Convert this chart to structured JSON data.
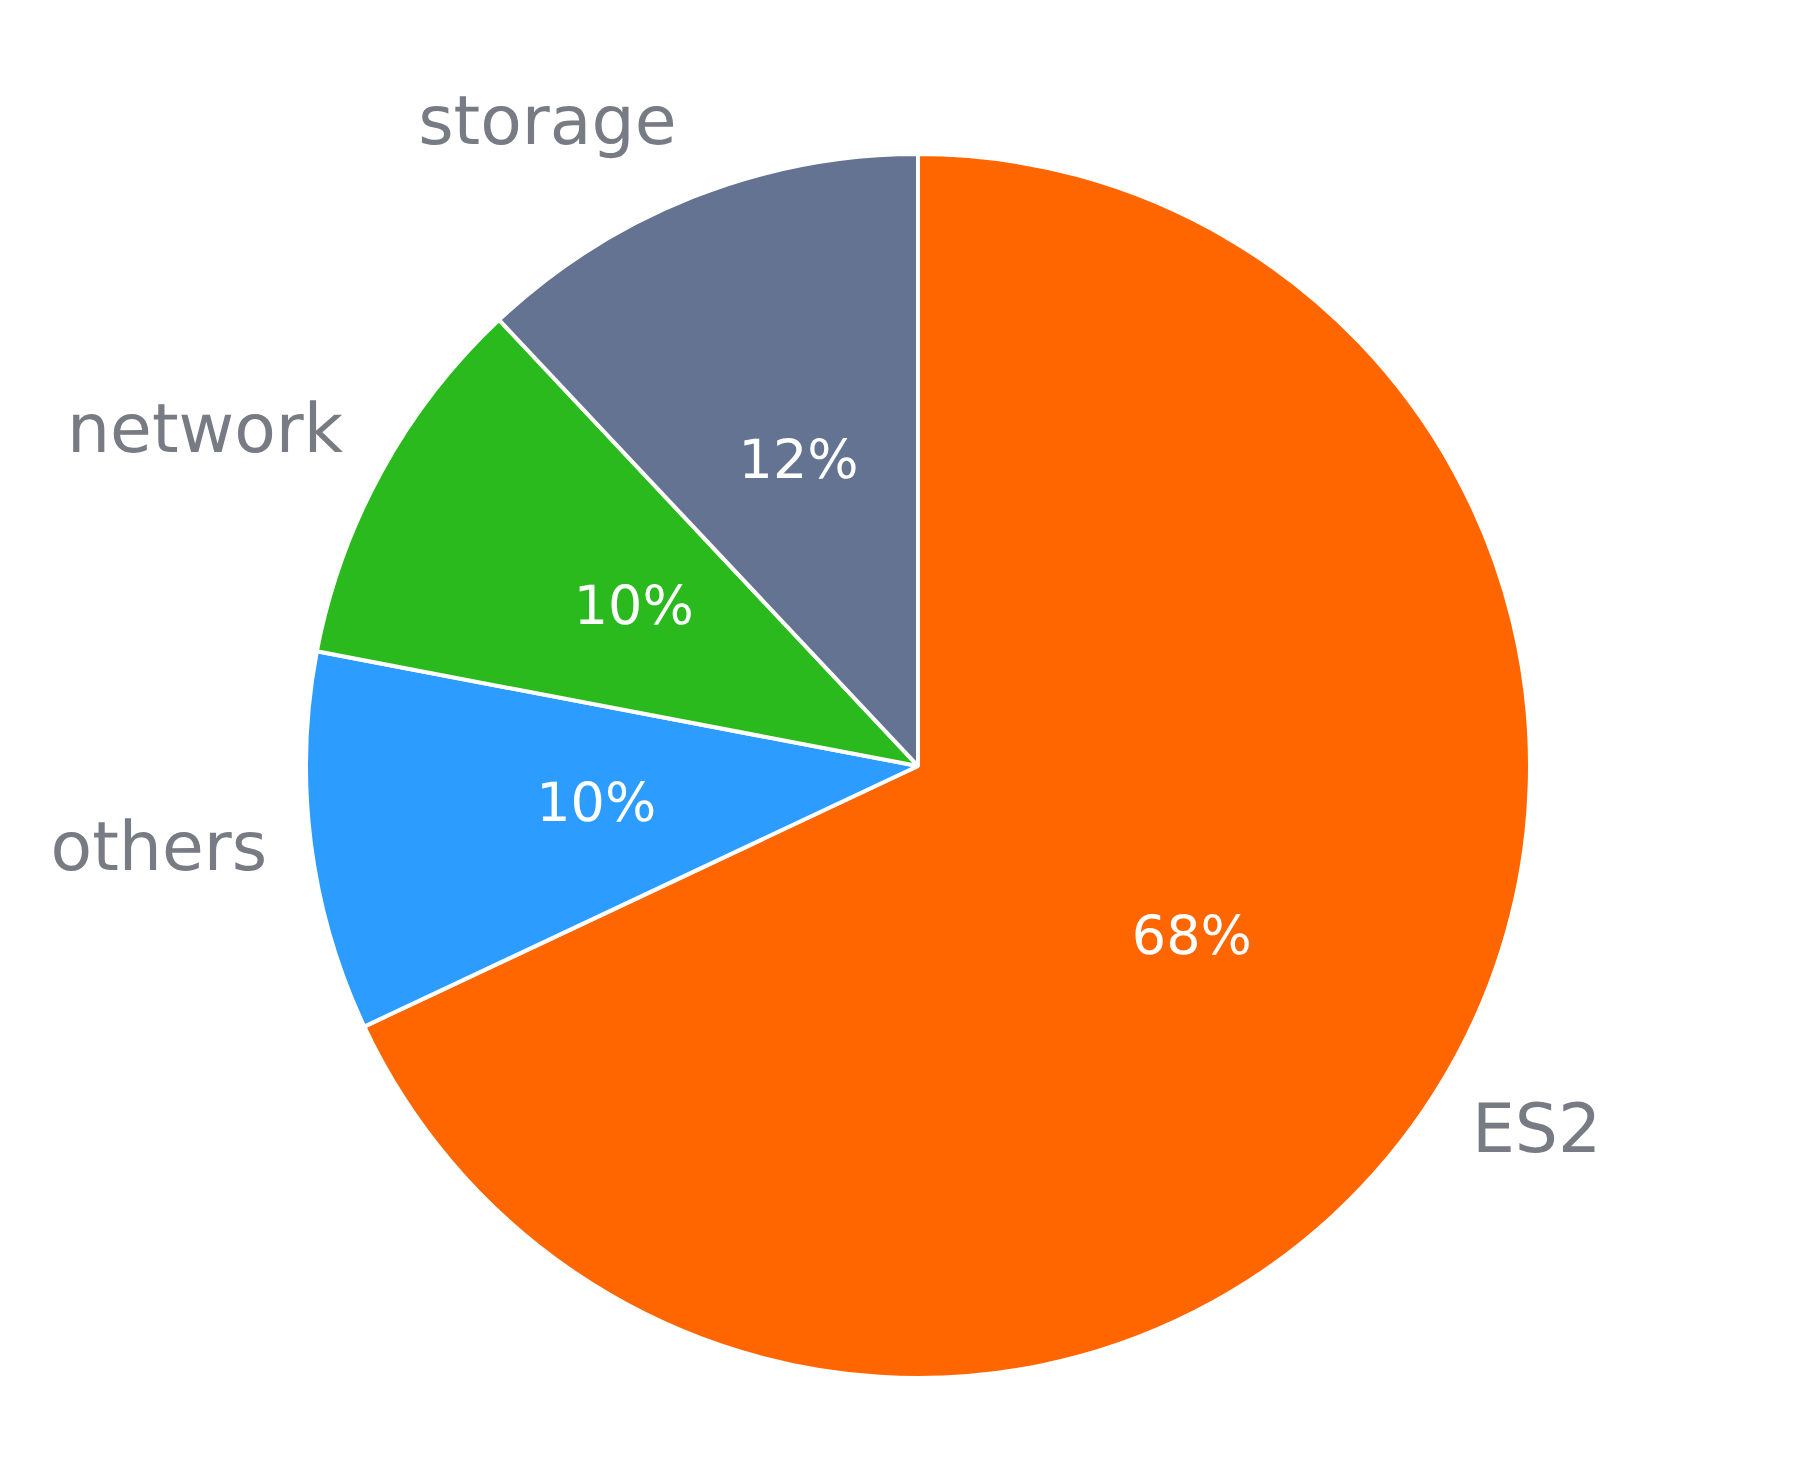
{
  "chart_data": {
    "type": "pie",
    "categories": [
      "ES2",
      "others",
      "network",
      "storage"
    ],
    "values": [
      68,
      10,
      10,
      12
    ],
    "colors": [
      "#ff6600",
      "#2d9cff",
      "#2aba1e",
      "#647391"
    ],
    "value_labels": [
      "68%",
      "10%",
      "10%",
      "12%"
    ],
    "legend": false
  }
}
